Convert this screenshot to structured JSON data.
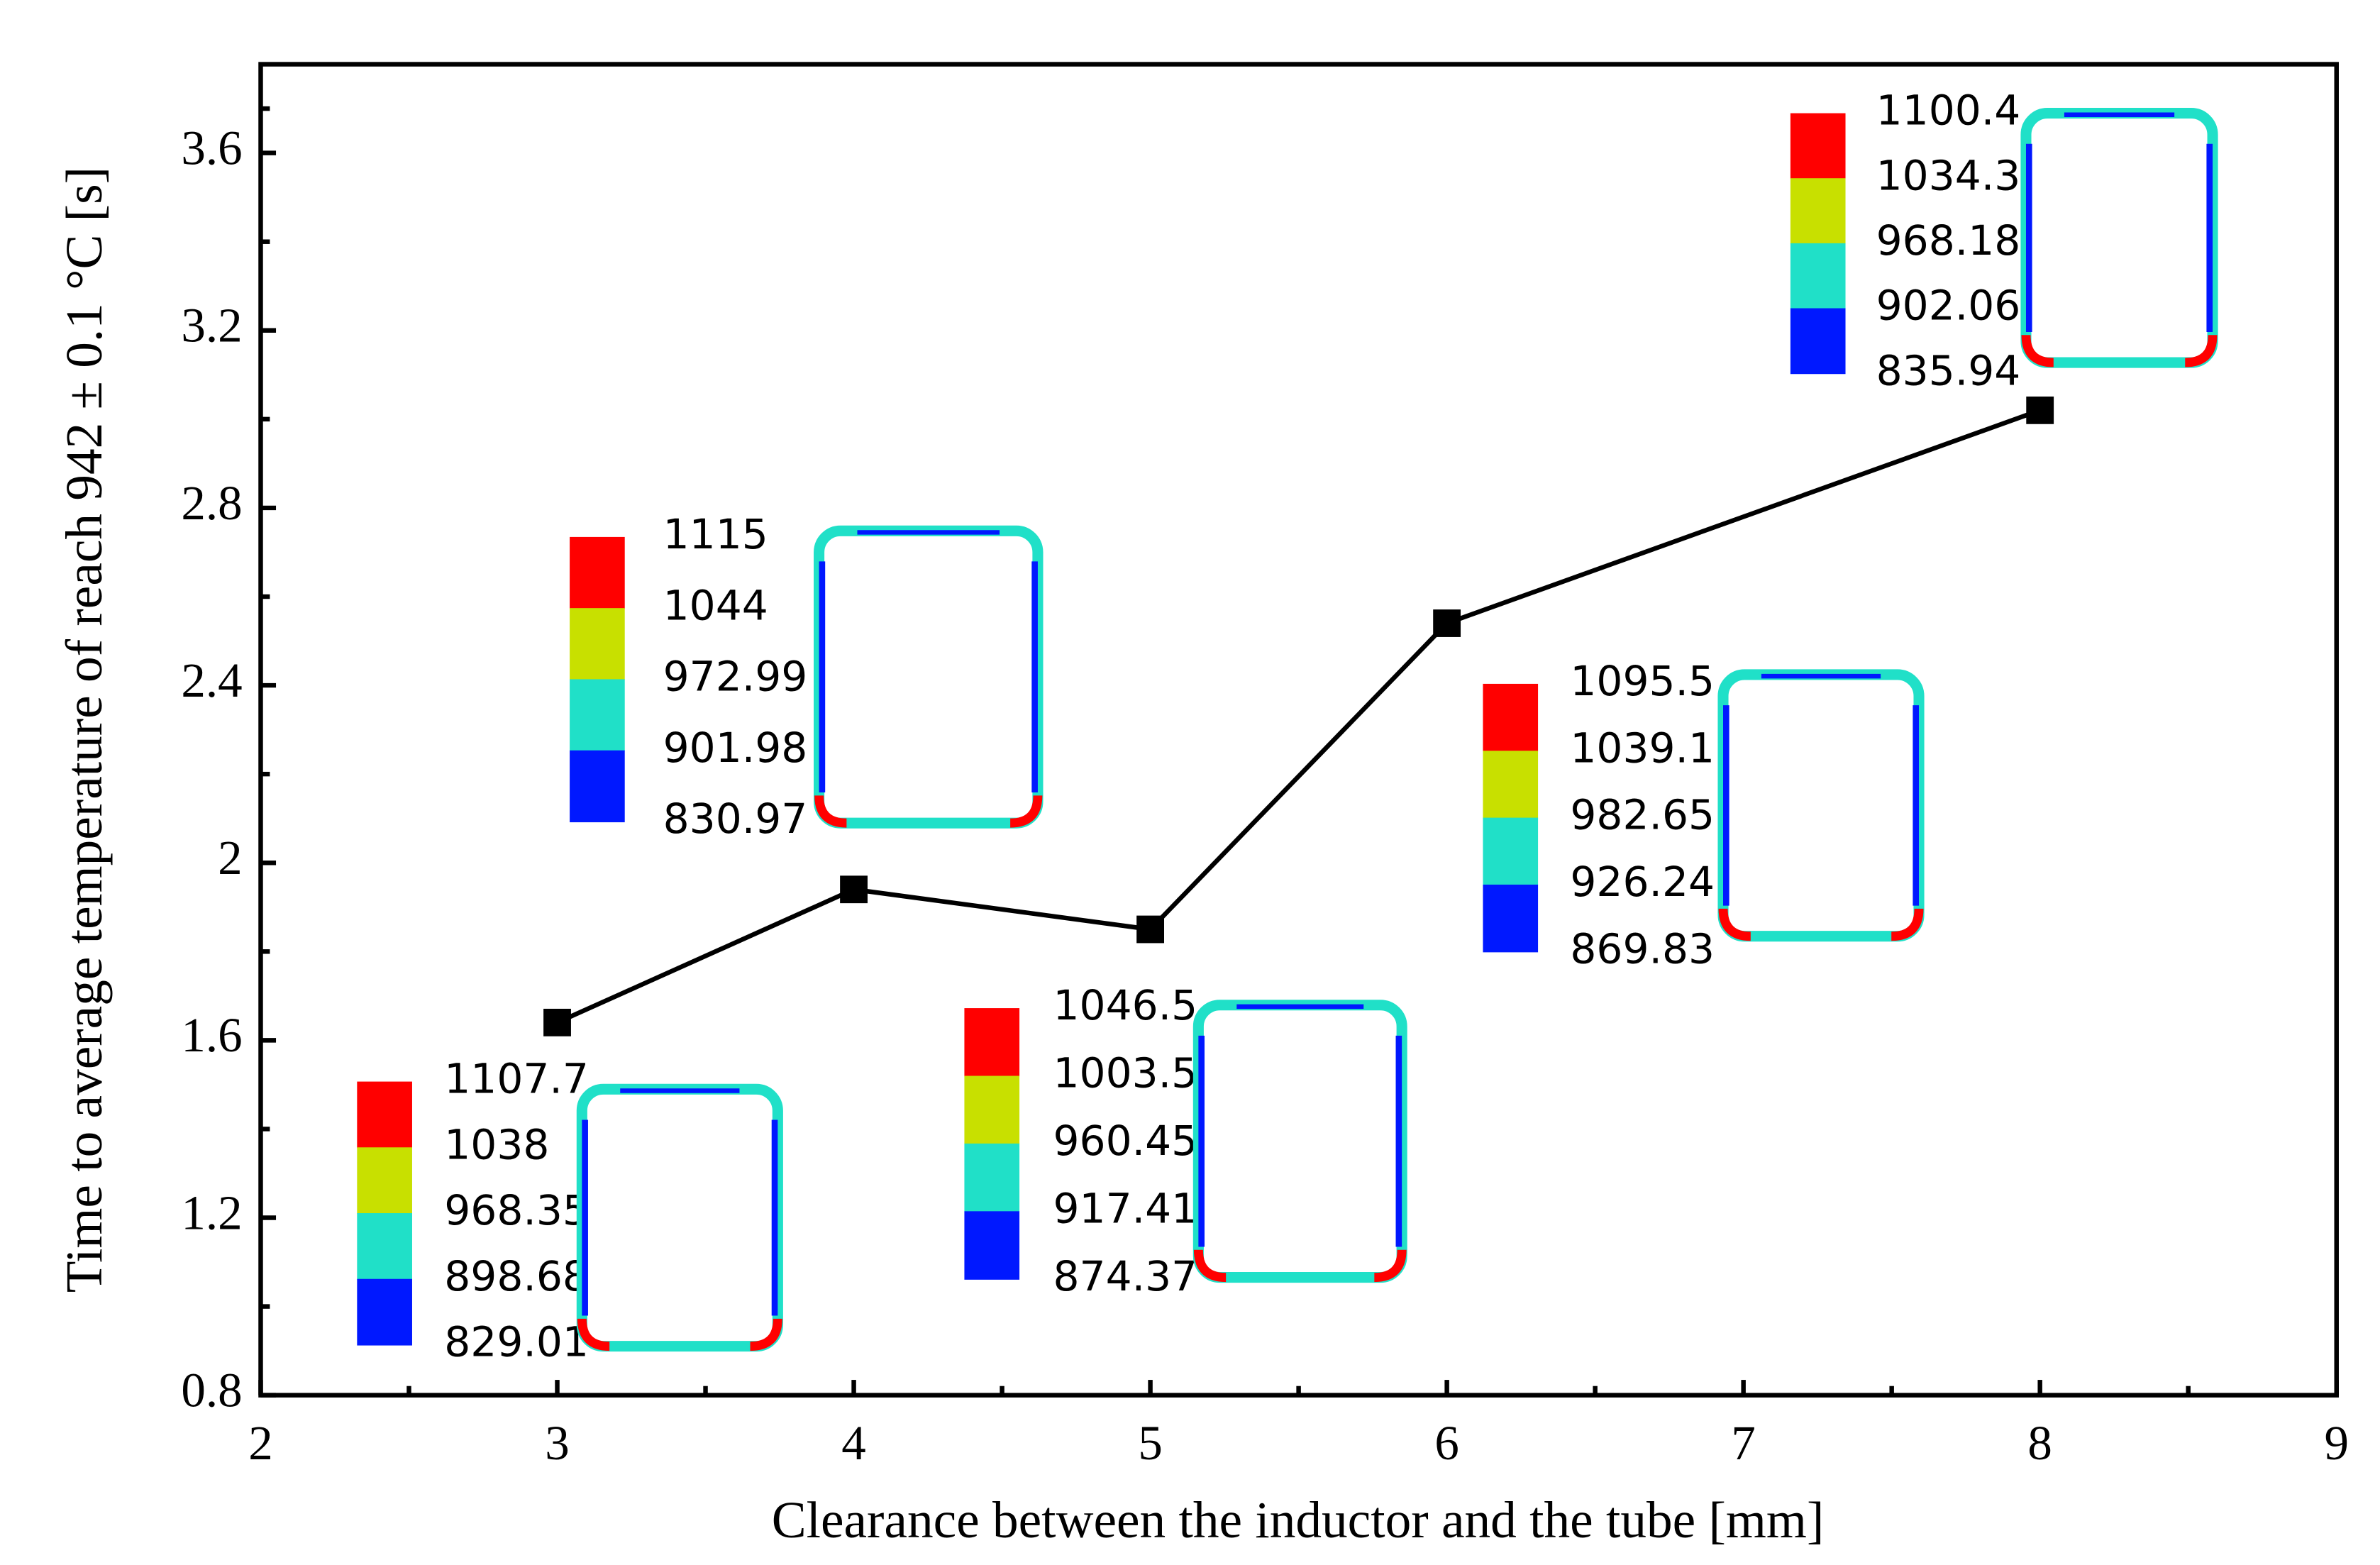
{
  "chart_data": {
    "type": "line",
    "x_label": "Clearance between the inductor and the tube [mm]",
    "y_label": "Time to average temperature of reach 942 ± 0.1 °C [s]",
    "x": [
      3,
      4,
      5,
      6,
      8
    ],
    "series": [
      {
        "color": "#000000",
        "values": [
          1.64,
          1.94,
          1.85,
          2.54,
          3.02
        ]
      }
    ],
    "xlim": [
      2,
      9
    ],
    "xticks": [
      2,
      3,
      4,
      5,
      6,
      7,
      8,
      9
    ],
    "ylim": [
      0.8,
      3.8
    ],
    "yticks": [
      0.8,
      1.2,
      1.6,
      2.0,
      2.4,
      2.8,
      3.2,
      3.6
    ],
    "contour_colors": [
      "#ff0000",
      "#c8e000",
      "#20e0c8",
      "#0018ff"
    ],
    "insets": [
      {
        "labels": [
          1107.7,
          1038,
          968.35,
          898.68,
          829.01
        ]
      },
      {
        "labels": [
          1115,
          1044,
          972.99,
          901.98,
          830.97
        ]
      },
      {
        "labels": [
          1046.5,
          1003.5,
          960.45,
          917.41,
          874.37
        ]
      },
      {
        "labels": [
          1095.5,
          1039.1,
          982.65,
          926.24,
          869.83
        ]
      },
      {
        "labels": [
          1100.4,
          1034.3,
          968.18,
          902.06,
          835.94
        ]
      }
    ]
  }
}
